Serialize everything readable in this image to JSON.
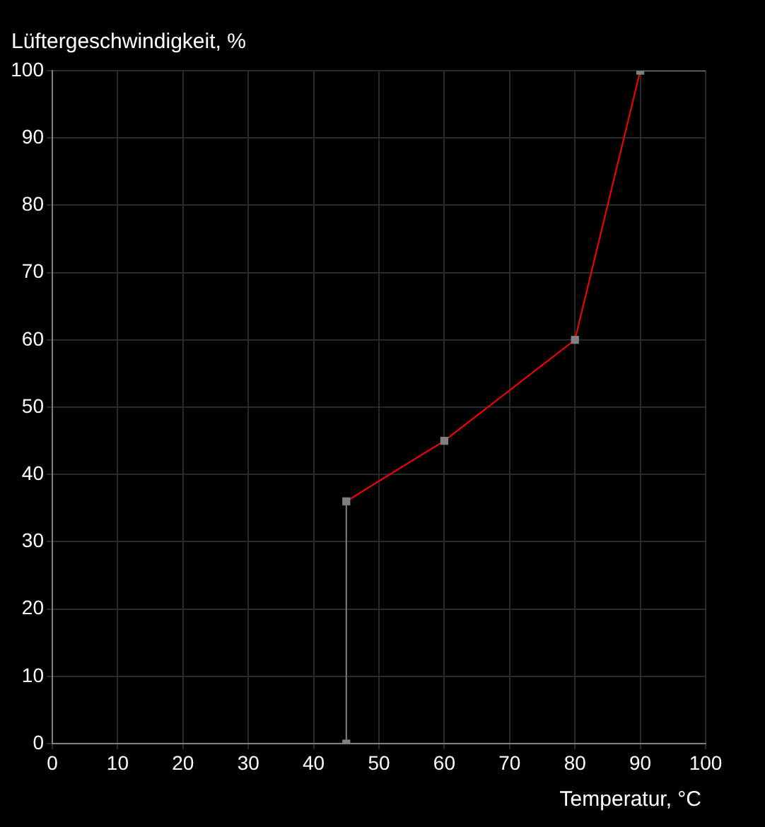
{
  "chart_data": {
    "type": "line",
    "xlabel": "Temperatur, °C",
    "ylabel": "Lüftergeschwindigkeit, %",
    "xlim": [
      0,
      100
    ],
    "xticks": [
      0,
      10,
      20,
      30,
      40,
      50,
      60,
      70,
      80,
      90,
      100
    ],
    "ylim": [
      0,
      100
    ],
    "yticks": [
      0,
      10,
      20,
      30,
      40,
      50,
      60,
      70,
      80,
      90,
      100
    ],
    "grid": true,
    "legend": false,
    "series": [
      {
        "type": "line",
        "x": [
          0,
          45,
          45
        ],
        "values": [
          0,
          0,
          36
        ],
        "color": "#808080",
        "marker": "none"
      },
      {
        "type": "line",
        "x": [
          45,
          60,
          80,
          90
        ],
        "values": [
          36,
          45,
          60,
          100
        ],
        "color": "#ff0000",
        "marker": "none"
      },
      {
        "type": "line",
        "x": [
          90,
          100
        ],
        "values": [
          100,
          100
        ],
        "color": "#808080",
        "marker": "none"
      },
      {
        "type": "scatter",
        "x": [
          45,
          45,
          60,
          80,
          90
        ],
        "values": [
          0,
          36,
          45,
          60,
          100
        ],
        "color": "#808080",
        "marker": "square"
      }
    ]
  }
}
